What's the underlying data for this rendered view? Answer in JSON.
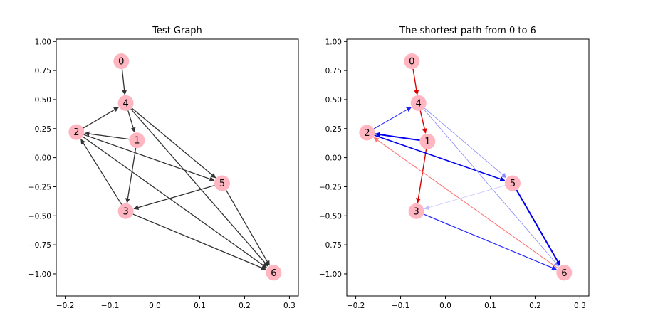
{
  "chart_data": [
    {
      "type": "graph",
      "title": "Test Graph",
      "xlim": [
        -0.22,
        0.32
      ],
      "ylim": [
        -1.19,
        1.02
      ],
      "xticks": [
        "−0.2",
        "−0.1",
        "0.0",
        "0.1",
        "0.2",
        "0.3"
      ],
      "yticks": [
        "1.00",
        "0.75",
        "0.50",
        "0.25",
        "0.00",
        "−0.25",
        "−0.50",
        "−0.75",
        "−1.00"
      ],
      "xtick_values": [
        -0.2,
        -0.1,
        0.0,
        0.1,
        0.2,
        0.3
      ],
      "ytick_values": [
        1.0,
        0.75,
        0.5,
        0.25,
        0.0,
        -0.25,
        -0.5,
        -0.75,
        -1.0
      ],
      "nodes": [
        {
          "id": "0",
          "x": -0.075,
          "y": 0.83
        },
        {
          "id": "1",
          "x": -0.04,
          "y": 0.15
        },
        {
          "id": "2",
          "x": -0.175,
          "y": 0.22
        },
        {
          "id": "3",
          "x": -0.065,
          "y": -0.46
        },
        {
          "id": "4",
          "x": -0.065,
          "y": 0.47
        },
        {
          "id": "5",
          "x": 0.15,
          "y": -0.22
        },
        {
          "id": "6",
          "x": 0.265,
          "y": -0.99
        }
      ],
      "edges": [
        {
          "from": "0",
          "to": "4",
          "color": "#333333",
          "width": 1.3
        },
        {
          "from": "4",
          "to": "1",
          "color": "#333333",
          "width": 1.3
        },
        {
          "from": "4",
          "to": "5",
          "color": "#333333",
          "width": 1.3
        },
        {
          "from": "4",
          "to": "6",
          "color": "#333333",
          "width": 1.3
        },
        {
          "from": "2",
          "to": "4",
          "color": "#333333",
          "width": 1.3
        },
        {
          "from": "1",
          "to": "2",
          "color": "#333333",
          "width": 1.3
        },
        {
          "from": "1",
          "to": "3",
          "color": "#333333",
          "width": 1.3
        },
        {
          "from": "2",
          "to": "5",
          "color": "#333333",
          "width": 1.3
        },
        {
          "from": "2",
          "to": "6",
          "color": "#333333",
          "width": 1.3
        },
        {
          "from": "3",
          "to": "2",
          "color": "#333333",
          "width": 1.3
        },
        {
          "from": "5",
          "to": "3",
          "color": "#333333",
          "width": 1.3
        },
        {
          "from": "5",
          "to": "6",
          "color": "#333333",
          "width": 1.3
        },
        {
          "from": "3",
          "to": "6",
          "color": "#333333",
          "width": 1.3
        }
      ]
    },
    {
      "type": "graph",
      "title": "The shortest path from 0 to 6",
      "xlim": [
        -0.22,
        0.32
      ],
      "ylim": [
        -1.19,
        1.02
      ],
      "xticks": [
        "−0.2",
        "−0.1",
        "0.0",
        "0.1",
        "0.2",
        "0.3"
      ],
      "yticks": [
        "1.00",
        "0.75",
        "0.50",
        "0.25",
        "0.00",
        "−0.25",
        "−0.50",
        "−0.75",
        "−1.00"
      ],
      "xtick_values": [
        -0.2,
        -0.1,
        0.0,
        0.1,
        0.2,
        0.3
      ],
      "ytick_values": [
        1.0,
        0.75,
        0.5,
        0.25,
        0.0,
        -0.25,
        -0.5,
        -0.75,
        -1.0
      ],
      "nodes": [
        {
          "id": "0",
          "x": -0.075,
          "y": 0.83
        },
        {
          "id": "1",
          "x": -0.04,
          "y": 0.14
        },
        {
          "id": "2",
          "x": -0.175,
          "y": 0.215
        },
        {
          "id": "3",
          "x": -0.065,
          "y": -0.46
        },
        {
          "id": "4",
          "x": -0.06,
          "y": 0.47
        },
        {
          "id": "5",
          "x": 0.15,
          "y": -0.22
        },
        {
          "id": "6",
          "x": 0.265,
          "y": -0.99
        }
      ],
      "edges": [
        {
          "from": "0",
          "to": "4",
          "color": "#dd0000",
          "width": 1.4
        },
        {
          "from": "4",
          "to": "1",
          "color": "#dd0000",
          "width": 1.4
        },
        {
          "from": "1",
          "to": "3",
          "color": "#dd0000",
          "width": 1.4
        },
        {
          "from": "6",
          "to": "2",
          "color": "#ff7070",
          "width": 1.0
        },
        {
          "from": "2",
          "to": "4",
          "color": "#2222ff",
          "width": 1.0
        },
        {
          "from": "1",
          "to": "2",
          "color": "#0000ee",
          "width": 2.0
        },
        {
          "from": "2",
          "to": "5",
          "color": "#0000ee",
          "width": 1.6
        },
        {
          "from": "4",
          "to": "5",
          "color": "#8888ff",
          "width": 0.8
        },
        {
          "from": "4",
          "to": "6",
          "color": "#8888ff",
          "width": 0.8
        },
        {
          "from": "5",
          "to": "3",
          "color": "#c0c0ff",
          "width": 0.7
        },
        {
          "from": "5",
          "to": "6",
          "color": "#0000ee",
          "width": 2.0
        },
        {
          "from": "3",
          "to": "6",
          "color": "#2222ff",
          "width": 1.2
        }
      ]
    }
  ],
  "style": {
    "node_fill": "#ffb6c1",
    "axis_color": "#000000",
    "background": "#ffffff"
  }
}
